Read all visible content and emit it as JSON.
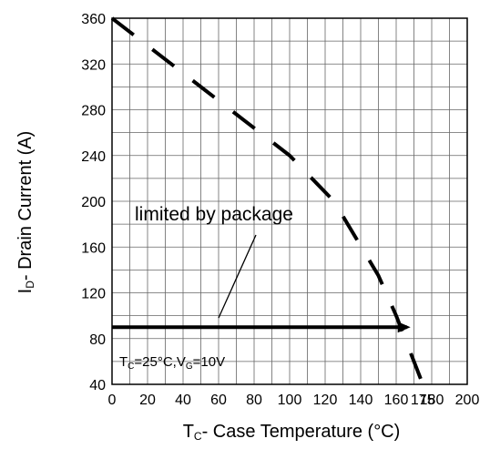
{
  "chart_data": {
    "type": "line",
    "xlabel": {
      "main": "T",
      "sub": "C",
      "rest": "- Case Temperature (°C)"
    },
    "ylabel": {
      "main": "I",
      "sub": "D",
      "rest": "- Drain Current (A)"
    },
    "xlim": [
      0,
      200
    ],
    "ylim": [
      40,
      360
    ],
    "x_ticks": [
      0,
      20,
      40,
      60,
      80,
      100,
      120,
      140,
      160,
      175,
      180,
      200
    ],
    "y_ticks": [
      40,
      80,
      120,
      160,
      200,
      240,
      280,
      320,
      360
    ],
    "grid": true,
    "series": [
      {
        "style": "dashed",
        "x": [
          0,
          25,
          50,
          75,
          100,
          125,
          150,
          160,
          175
        ],
        "y": [
          360,
          330,
          300,
          270,
          240,
          200,
          135,
          100,
          40
        ]
      },
      {
        "style": "solid",
        "x": [
          0,
          166
        ],
        "y": [
          90,
          90
        ]
      }
    ],
    "annotations": {
      "package_label": "limited by package",
      "conditions": {
        "t": "T",
        "t_sub": "C",
        "t_rest": "=25°C,V",
        "v_sub": "G",
        "v_rest": "=10V"
      }
    }
  }
}
